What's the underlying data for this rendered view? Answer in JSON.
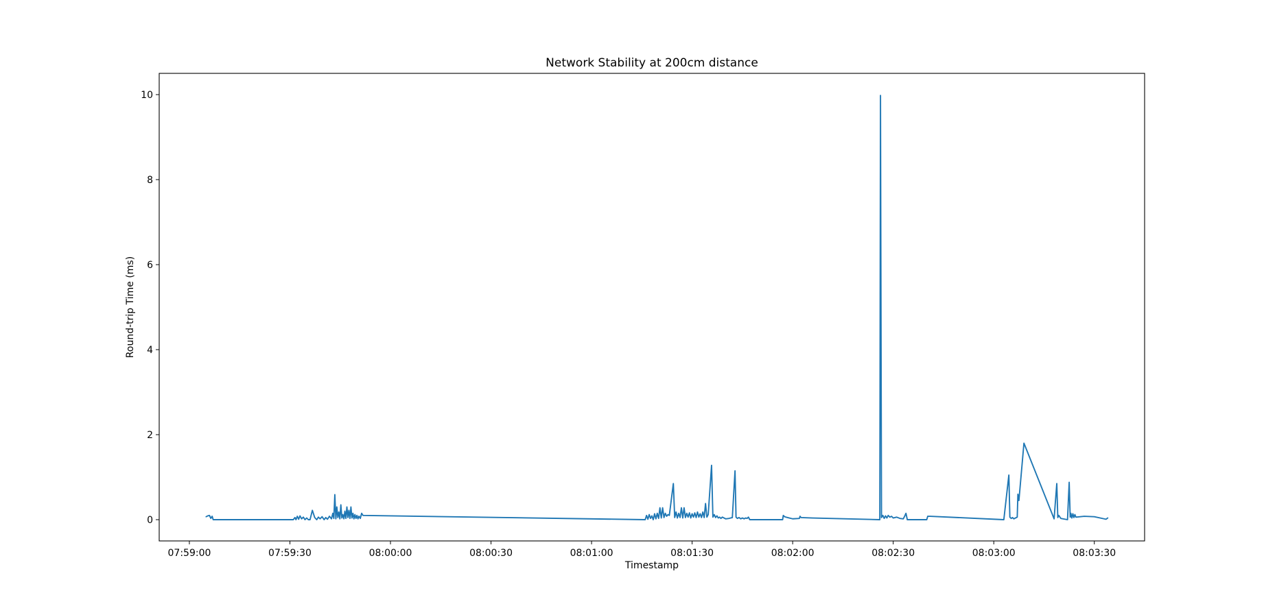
{
  "chart_data": {
    "type": "line",
    "title": "Network Stability at 200cm distance",
    "xlabel": "Timestamp",
    "ylabel": "Round-trip Time (ms)",
    "x_ticks": [
      "07:59:00",
      "07:59:30",
      "08:00:00",
      "08:00:30",
      "08:01:00",
      "08:01:30",
      "08:02:00",
      "08:02:30",
      "08:03:00",
      "08:03:30"
    ],
    "y_ticks": [
      "0",
      "2",
      "4",
      "6",
      "8",
      "10"
    ],
    "xlim": [
      "07:58:51",
      "08:03:45"
    ],
    "ylim": [
      -0.5,
      10.5
    ],
    "grid": false,
    "color": "#1f77b4",
    "series": [
      {
        "name": "",
        "points": [
          [
            "07:59:05.0",
            0.07
          ],
          [
            "07:59:05.5",
            0.09
          ],
          [
            "07:59:06.0",
            0.1
          ],
          [
            "07:59:06.4",
            0.03
          ],
          [
            "07:59:06.8",
            0.08
          ],
          [
            "07:59:07.1",
            0.0
          ],
          [
            "07:59:12.0",
            0.0
          ],
          [
            "07:59:20.0",
            0.0
          ],
          [
            "07:59:31.0",
            0.0
          ],
          [
            "07:59:31.5",
            0.05
          ],
          [
            "07:59:31.8",
            0.0
          ],
          [
            "07:59:32.2",
            0.08
          ],
          [
            "07:59:32.6",
            0.01
          ],
          [
            "07:59:33.0",
            0.09
          ],
          [
            "07:59:33.5",
            0.02
          ],
          [
            "07:59:34.0",
            0.06
          ],
          [
            "07:59:34.5",
            0.0
          ],
          [
            "07:59:35.0",
            0.04
          ],
          [
            "07:59:35.5",
            0.0
          ],
          [
            "07:59:36.0",
            0.0
          ],
          [
            "07:59:36.7",
            0.22
          ],
          [
            "07:59:37.4",
            0.05
          ],
          [
            "07:59:38.0",
            0.0
          ],
          [
            "07:59:38.5",
            0.06
          ],
          [
            "07:59:39.0",
            0.02
          ],
          [
            "07:59:39.6",
            0.07
          ],
          [
            "07:59:40.2",
            0.0
          ],
          [
            "07:59:40.7",
            0.05
          ],
          [
            "07:59:41.2",
            0.01
          ],
          [
            "07:59:41.8",
            0.08
          ],
          [
            "07:59:42.4",
            0.02
          ],
          [
            "07:59:42.8",
            0.15
          ],
          [
            "07:59:43.1",
            0.03
          ],
          [
            "07:59:43.4",
            0.59
          ],
          [
            "07:59:43.7",
            0.02
          ],
          [
            "07:59:44.0",
            0.3
          ],
          [
            "07:59:44.3",
            0.05
          ],
          [
            "07:59:44.6",
            0.18
          ],
          [
            "07:59:44.9",
            0.02
          ],
          [
            "07:59:45.2",
            0.35
          ],
          [
            "07:59:45.5",
            0.04
          ],
          [
            "07:59:45.8",
            0.12
          ],
          [
            "07:59:46.1",
            0.02
          ],
          [
            "07:59:46.4",
            0.2
          ],
          [
            "07:59:46.7",
            0.03
          ],
          [
            "07:59:47.0",
            0.3
          ],
          [
            "07:59:47.3",
            0.05
          ],
          [
            "07:59:47.6",
            0.22
          ],
          [
            "07:59:47.9",
            0.03
          ],
          [
            "07:59:48.2",
            0.3
          ],
          [
            "07:59:48.5",
            0.04
          ],
          [
            "07:59:48.8",
            0.15
          ],
          [
            "07:59:49.1",
            0.02
          ],
          [
            "07:59:49.4",
            0.12
          ],
          [
            "07:59:49.7",
            0.03
          ],
          [
            "07:59:50.0",
            0.1
          ],
          [
            "07:59:50.3",
            0.02
          ],
          [
            "07:59:50.6",
            0.08
          ],
          [
            "07:59:51.0",
            0.03
          ],
          [
            "07:59:51.4",
            0.15
          ],
          [
            "07:59:51.8",
            0.1
          ],
          [
            "08:01:16.0",
            0.0
          ],
          [
            "08:01:16.4",
            0.1
          ],
          [
            "08:01:16.8",
            0.01
          ],
          [
            "08:01:17.2",
            0.12
          ],
          [
            "08:01:17.6",
            0.03
          ],
          [
            "08:01:18.0",
            0.09
          ],
          [
            "08:01:18.4",
            0.0
          ],
          [
            "08:01:18.8",
            0.14
          ],
          [
            "08:01:19.2",
            0.02
          ],
          [
            "08:01:19.6",
            0.15
          ],
          [
            "08:01:20.0",
            0.03
          ],
          [
            "08:01:20.4",
            0.28
          ],
          [
            "08:01:20.8",
            0.04
          ],
          [
            "08:01:21.2",
            0.28
          ],
          [
            "08:01:21.6",
            0.05
          ],
          [
            "08:01:22.0",
            0.15
          ],
          [
            "08:01:22.4",
            0.08
          ],
          [
            "08:01:22.8",
            0.12
          ],
          [
            "08:01:23.2",
            0.1
          ],
          [
            "08:01:24.4",
            0.85
          ],
          [
            "08:01:24.8",
            0.05
          ],
          [
            "08:01:25.2",
            0.18
          ],
          [
            "08:01:25.6",
            0.04
          ],
          [
            "08:01:26.0",
            0.15
          ],
          [
            "08:01:26.4",
            0.05
          ],
          [
            "08:01:26.8",
            0.28
          ],
          [
            "08:01:27.2",
            0.04
          ],
          [
            "08:01:27.6",
            0.28
          ],
          [
            "08:01:28.0",
            0.05
          ],
          [
            "08:01:28.4",
            0.15
          ],
          [
            "08:01:28.8",
            0.06
          ],
          [
            "08:01:29.2",
            0.16
          ],
          [
            "08:01:29.6",
            0.04
          ],
          [
            "08:01:30.0",
            0.14
          ],
          [
            "08:01:30.4",
            0.06
          ],
          [
            "08:01:30.8",
            0.16
          ],
          [
            "08:01:31.2",
            0.05
          ],
          [
            "08:01:31.6",
            0.18
          ],
          [
            "08:01:32.0",
            0.06
          ],
          [
            "08:01:32.4",
            0.14
          ],
          [
            "08:01:32.8",
            0.05
          ],
          [
            "08:01:33.2",
            0.18
          ],
          [
            "08:01:33.6",
            0.05
          ],
          [
            "08:01:34.0",
            0.38
          ],
          [
            "08:01:34.4",
            0.06
          ],
          [
            "08:01:34.8",
            0.12
          ],
          [
            "08:01:35.8",
            1.28
          ],
          [
            "08:01:36.2",
            0.06
          ],
          [
            "08:01:36.6",
            0.12
          ],
          [
            "08:01:37.0",
            0.05
          ],
          [
            "08:01:37.4",
            0.09
          ],
          [
            "08:01:37.8",
            0.04
          ],
          [
            "08:01:38.2",
            0.06
          ],
          [
            "08:01:38.6",
            0.03
          ],
          [
            "08:01:39.0",
            0.06
          ],
          [
            "08:01:40.0",
            0.02
          ],
          [
            "08:01:41.0",
            0.03
          ],
          [
            "08:01:42.0",
            0.05
          ],
          [
            "08:01:42.8",
            1.15
          ],
          [
            "08:01:43.1",
            0.06
          ],
          [
            "08:01:43.5",
            0.03
          ],
          [
            "08:01:44.0",
            0.05
          ],
          [
            "08:01:44.5",
            0.02
          ],
          [
            "08:01:45.0",
            0.04
          ],
          [
            "08:01:45.5",
            0.02
          ],
          [
            "08:01:46.0",
            0.04
          ],
          [
            "08:01:46.4",
            0.03
          ],
          [
            "08:01:46.8",
            0.06
          ],
          [
            "08:01:47.2",
            0.0
          ],
          [
            "08:01:50.0",
            0.0
          ],
          [
            "08:01:57.0",
            0.0
          ],
          [
            "08:01:57.2",
            0.1
          ],
          [
            "08:01:57.6",
            0.07
          ],
          [
            "08:01:58.0",
            0.06
          ],
          [
            "08:01:59.0",
            0.04
          ],
          [
            "08:02:00.0",
            0.02
          ],
          [
            "08:02:02.0",
            0.03
          ],
          [
            "08:02:02.2",
            0.08
          ],
          [
            "08:02:02.5",
            0.05
          ],
          [
            "08:02:06.0",
            0.04
          ],
          [
            "08:02:26.0",
            0.0
          ],
          [
            "08:02:26.2",
            9.98
          ],
          [
            "08:02:26.5",
            0.05
          ],
          [
            "08:02:26.9",
            0.1
          ],
          [
            "08:02:27.3",
            0.03
          ],
          [
            "08:02:27.7",
            0.09
          ],
          [
            "08:02:28.1",
            0.04
          ],
          [
            "08:02:28.5",
            0.1
          ],
          [
            "08:02:29.0",
            0.06
          ],
          [
            "08:02:29.5",
            0.08
          ],
          [
            "08:02:30.0",
            0.04
          ],
          [
            "08:02:31.0",
            0.06
          ],
          [
            "08:02:32.0",
            0.03
          ],
          [
            "08:02:33.0",
            0.02
          ],
          [
            "08:02:33.4",
            0.08
          ],
          [
            "08:02:33.8",
            0.15
          ],
          [
            "08:02:34.2",
            0.0
          ],
          [
            "08:02:38.0",
            0.0
          ],
          [
            "08:02:40.0",
            0.0
          ],
          [
            "08:02:40.3",
            0.08
          ],
          [
            "08:02:41.0",
            0.08
          ],
          [
            "08:03:03.0",
            0.0
          ],
          [
            "08:03:04.5",
            1.05
          ],
          [
            "08:03:04.8",
            0.06
          ],
          [
            "08:03:05.2",
            0.03
          ],
          [
            "08:03:05.6",
            0.05
          ],
          [
            "08:03:06.0",
            0.02
          ],
          [
            "08:03:06.5",
            0.04
          ],
          [
            "08:03:07.0",
            0.06
          ],
          [
            "08:03:07.2",
            0.6
          ],
          [
            "08:03:07.5",
            0.45
          ],
          [
            "08:03:09.0",
            1.8
          ],
          [
            "08:03:18.0",
            0.02
          ],
          [
            "08:03:18.8",
            0.85
          ],
          [
            "08:03:19.1",
            0.05
          ],
          [
            "08:03:19.4",
            0.1
          ],
          [
            "08:03:20.0",
            0.03
          ],
          [
            "08:03:22.0",
            0.0
          ],
          [
            "08:03:22.5",
            0.88
          ],
          [
            "08:03:22.8",
            0.06
          ],
          [
            "08:03:23.0",
            0.15
          ],
          [
            "08:03:23.3",
            0.04
          ],
          [
            "08:03:23.6",
            0.14
          ],
          [
            "08:03:23.9",
            0.05
          ],
          [
            "08:03:24.2",
            0.12
          ],
          [
            "08:03:24.5",
            0.06
          ],
          [
            "08:03:27.0",
            0.08
          ],
          [
            "08:03:30.0",
            0.07
          ],
          [
            "08:03:33.5",
            0.01
          ],
          [
            "08:03:34.0",
            0.04
          ]
        ]
      }
    ]
  }
}
